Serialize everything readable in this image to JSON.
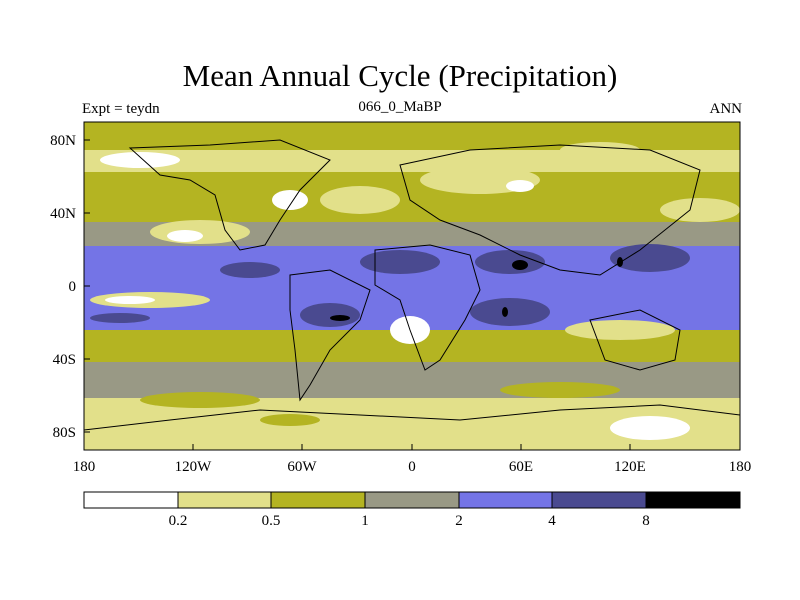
{
  "title": "Mean Annual Cycle (Precipitation)",
  "subtitle_left": "Expt = teydn",
  "subtitle_center": "066_0_MaBP",
  "subtitle_right": "ANN",
  "x_ticks": [
    "180",
    "120W",
    "60W",
    "0",
    "60E",
    "120E",
    "180"
  ],
  "y_ticks": [
    "80N",
    "40N",
    "0",
    "40S",
    "80S"
  ],
  "colorbar": {
    "levels": [
      "0.2",
      "0.5",
      "1",
      "2",
      "4",
      "8"
    ],
    "colors": [
      "#ffffff",
      "#e2e08a",
      "#b4b422",
      "#999985",
      "#7474e6",
      "#4a4a90",
      "#000000"
    ]
  },
  "map_bands": [
    {
      "lat": "90N-75N",
      "class": "1"
    },
    {
      "lat": "75N-60N",
      "class": "0.5"
    },
    {
      "lat": "60N-35N",
      "class": "1"
    },
    {
      "lat": "35N-20N",
      "class": "2"
    },
    {
      "lat": "20N-0",
      "class": "4"
    },
    {
      "lat": "0-20S",
      "class": "4"
    },
    {
      "lat": "20S-40S",
      "class": "1"
    },
    {
      "lat": "40S-60S",
      "class": "2"
    },
    {
      "lat": "60S-90S",
      "class": "0.5"
    }
  ]
}
